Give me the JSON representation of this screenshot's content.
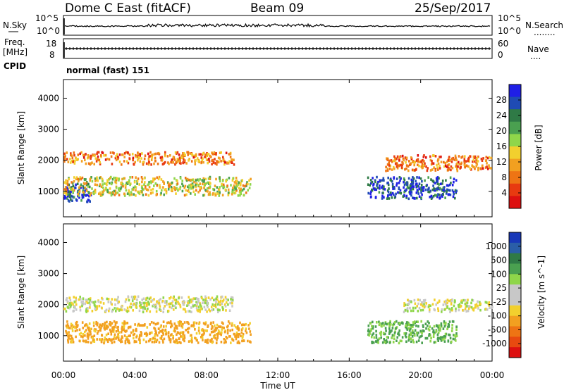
{
  "header": {
    "station": "Dome C East (fitACF)",
    "beam": "Beam 09",
    "date": "25/Sep/2017"
  },
  "left_labels": {
    "nsky": "N.Sky",
    "freq_line1": "Freq.",
    "freq_line2": "[MHz]",
    "cpid": "CPID"
  },
  "right_labels": {
    "nsearch": "N.Search",
    "nsearch_dots": "........",
    "nave": "Nave",
    "nave_dots": "...."
  },
  "cpid_text": "normal (fast) 151",
  "strip_ticks": {
    "noise_left": [
      "10^5",
      "10^0"
    ],
    "noise_right": [
      "10^5",
      "10^0"
    ],
    "freq_left": [
      "18",
      "8"
    ],
    "nave_right": [
      "60",
      "0"
    ]
  },
  "panel_ylabel": "Slant Range [km]",
  "y_ticks": [
    "1000",
    "2000",
    "3000",
    "4000"
  ],
  "x_ticks": [
    "00:00",
    "04:00",
    "08:00",
    "12:00",
    "16:00",
    "20:00",
    "00:00"
  ],
  "xlabel": "Time UT",
  "power_colorbar": {
    "label": "Power [dB]",
    "ticks": [
      "4",
      "8",
      "12",
      "16",
      "20",
      "24",
      "28"
    ],
    "colors": [
      "#1f1fe6",
      "#1f4bb4",
      "#2f7a46",
      "#4aa050",
      "#8fd64a",
      "#f2d02e",
      "#f2a020",
      "#ee7414",
      "#e83a10",
      "#dd1010"
    ]
  },
  "velocity_colorbar": {
    "label": "Velocity [m s^-1]",
    "ticks": [
      "1000",
      "500",
      "100",
      "25",
      "-25",
      "-100",
      "-500",
      "-1000"
    ],
    "colors": [
      "#1838b8",
      "#2a5ea8",
      "#2f7a46",
      "#4aa050",
      "#8fd64a",
      "#c8c8c8",
      "#c8c8c8",
      "#f2d02e",
      "#f2a020",
      "#ee7414",
      "#e84a10",
      "#dd1010"
    ]
  },
  "chart_data": [
    {
      "type": "heatmap",
      "title": "Power",
      "xlabel": "Time UT",
      "ylabel": "Slant Range [km]",
      "xlim": [
        "00:00",
        "24:00"
      ],
      "ylim": [
        180,
        4600
      ],
      "colorbar_label": "Power [dB]",
      "colorbar_range": [
        0,
        30
      ],
      "scatter_regions": [
        {
          "time": [
            "00:00",
            "01:30"
          ],
          "range_km": [
            700,
            1300
          ],
          "power_db": 26
        },
        {
          "time": [
            "00:00",
            "09:30"
          ],
          "range_km": [
            1900,
            2300
          ],
          "power_db": 8
        },
        {
          "time": [
            "00:00",
            "10:30"
          ],
          "range_km": [
            900,
            1500
          ],
          "power_db": 14
        },
        {
          "time": [
            "17:00",
            "22:00"
          ],
          "range_km": [
            800,
            1500
          ],
          "power_db": 26
        },
        {
          "time": [
            "18:00",
            "24:00"
          ],
          "range_km": [
            1700,
            2200
          ],
          "power_db": 8
        }
      ]
    },
    {
      "type": "heatmap",
      "title": "Velocity",
      "xlabel": "Time UT",
      "ylabel": "Slant Range [km]",
      "xlim": [
        "00:00",
        "24:00"
      ],
      "ylim": [
        180,
        4600
      ],
      "colorbar_label": "Velocity [m s^-1]",
      "colorbar_range": [
        -1000,
        1000
      ],
      "scatter_regions": [
        {
          "time": [
            "00:00",
            "09:30"
          ],
          "range_km": [
            1800,
            2300
          ],
          "velocity_ms": 0
        },
        {
          "time": [
            "00:00",
            "10:30"
          ],
          "range_km": [
            800,
            1500
          ],
          "velocity_ms": -150
        },
        {
          "time": [
            "17:00",
            "22:00"
          ],
          "range_km": [
            800,
            1500
          ],
          "velocity_ms": 120
        },
        {
          "time": [
            "19:00",
            "24:00"
          ],
          "range_km": [
            1800,
            2200
          ],
          "velocity_ms": 0
        }
      ]
    }
  ]
}
